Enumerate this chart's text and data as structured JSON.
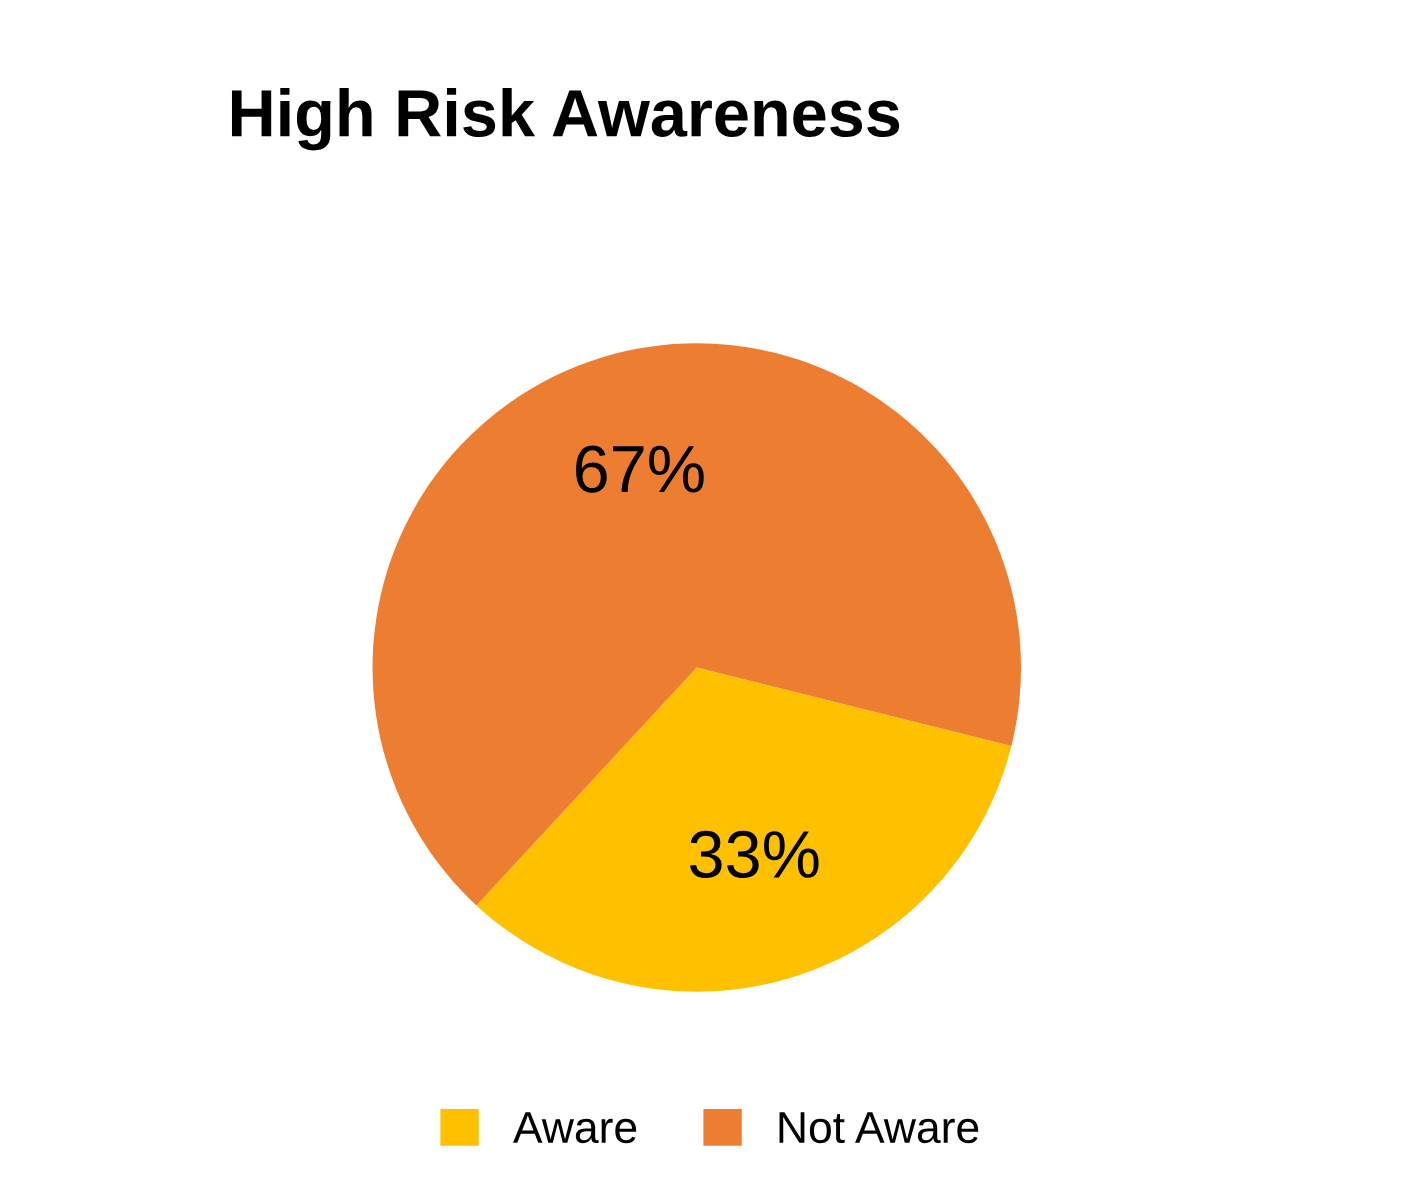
{
  "chart_data": {
    "type": "pie",
    "title": "High Risk Awareness",
    "categories": [
      "Aware",
      "Not Aware"
    ],
    "values": [
      33,
      67
    ],
    "colors": [
      "#ffc000",
      "#ed7d31"
    ],
    "value_labels": [
      "33%",
      "67%"
    ],
    "legend": "bottom"
  }
}
